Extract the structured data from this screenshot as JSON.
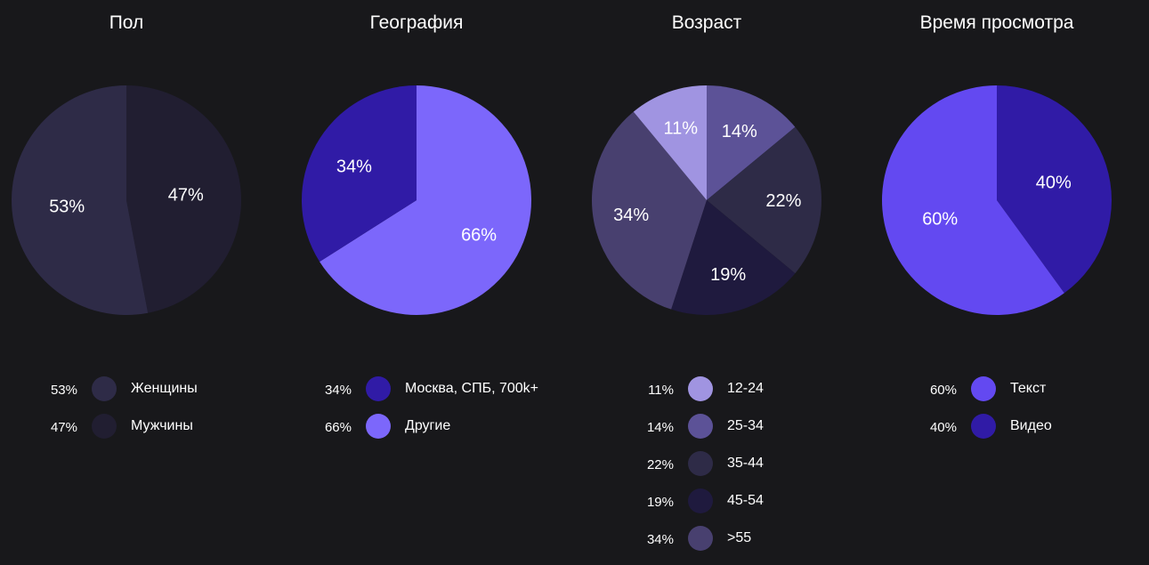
{
  "chart_data": [
    {
      "type": "pie",
      "title": "Пол",
      "slices": [
        {
          "label": "Женщины",
          "value": 53,
          "display": "53%",
          "color": "#2e2b47"
        },
        {
          "label": "Мужчины",
          "value": 47,
          "display": "47%",
          "color": "#211e31"
        }
      ]
    },
    {
      "type": "pie",
      "title": "География",
      "slices": [
        {
          "label": "Москва, СПБ, 700k+",
          "value": 34,
          "display": "34%",
          "color": "#301ba6"
        },
        {
          "label": "Другие",
          "value": 66,
          "display": "66%",
          "color": "#7c67fb"
        }
      ]
    },
    {
      "type": "pie",
      "title": "Возраст",
      "slices": [
        {
          "label": "12-24",
          "value": 11,
          "display": "11%",
          "color": "#a094e1"
        },
        {
          "label": "25-34",
          "value": 14,
          "display": "14%",
          "color": "#5c5297"
        },
        {
          "label": "35-44",
          "value": 22,
          "display": "22%",
          "color": "#2e2b47"
        },
        {
          "label": "45-54",
          "value": 19,
          "display": "19%",
          "color": "#1f1a3e"
        },
        {
          "label": ">55",
          "value": 34,
          "display": "34%",
          "color": "#48406f"
        }
      ]
    },
    {
      "type": "pie",
      "title": "Время просмотра",
      "slices": [
        {
          "label": "Текст",
          "value": 60,
          "display": "60%",
          "color": "#6349f1"
        },
        {
          "label": "Видео",
          "value": 40,
          "display": "40%",
          "color": "#301ba6"
        }
      ]
    }
  ]
}
